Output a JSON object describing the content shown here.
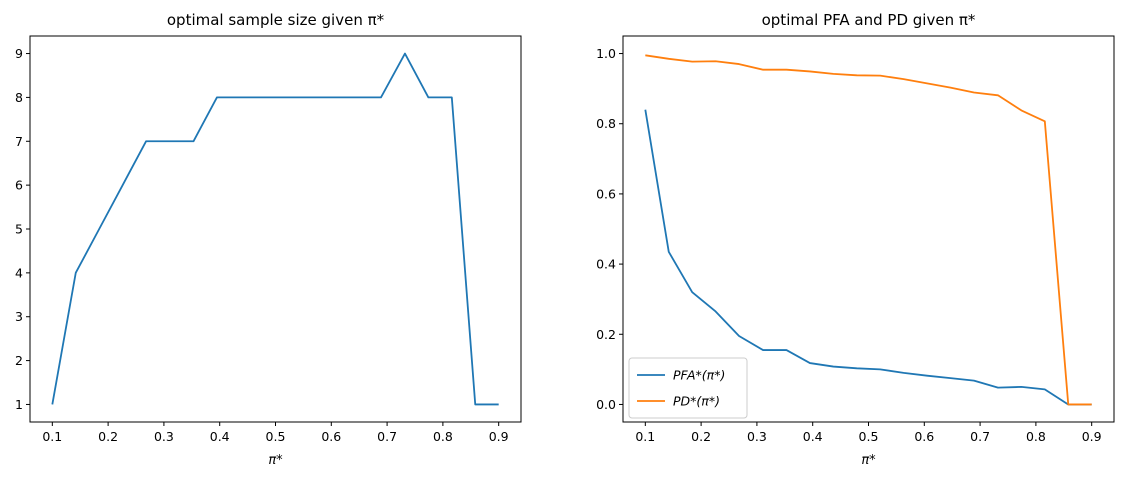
{
  "chart_data": [
    {
      "type": "line",
      "title": "optimal sample size given π*",
      "xlabel": "π*",
      "ylabel": "",
      "xlim": [
        0.06,
        0.94
      ],
      "ylim": [
        0.6,
        9.4
      ],
      "xticks": [
        0.1,
        0.2,
        0.3,
        0.4,
        0.5,
        0.6,
        0.7,
        0.8,
        0.9
      ],
      "xtick_labels": [
        "0.1",
        "0.2",
        "0.3",
        "0.4",
        "0.5",
        "0.6",
        "0.7",
        "0.8",
        "0.9"
      ],
      "yticks": [
        1,
        2,
        3,
        4,
        5,
        6,
        7,
        8,
        9
      ],
      "ytick_labels": [
        "1",
        "2",
        "3",
        "4",
        "5",
        "6",
        "7",
        "8",
        "9"
      ],
      "grid": false,
      "legend": null,
      "x": [
        0.1,
        0.142,
        0.184,
        0.226,
        0.268,
        0.311,
        0.353,
        0.395,
        0.437,
        0.479,
        0.521,
        0.563,
        0.605,
        0.647,
        0.689,
        0.732,
        0.774,
        0.816,
        0.858,
        0.9
      ],
      "series": [
        {
          "color": "#1f77b4",
          "values": [
            1,
            4,
            5,
            6,
            7,
            7,
            7,
            8,
            8,
            8,
            8,
            8,
            8,
            8,
            8,
            9,
            8,
            8,
            1,
            1
          ]
        }
      ]
    },
    {
      "type": "line",
      "title": "optimal PFA and PD given π*",
      "xlabel": "π*",
      "ylabel": "",
      "xlim": [
        0.06,
        0.94
      ],
      "ylim": [
        -0.05,
        1.05
      ],
      "xticks": [
        0.1,
        0.2,
        0.3,
        0.4,
        0.5,
        0.6,
        0.7,
        0.8,
        0.9
      ],
      "xtick_labels": [
        "0.1",
        "0.2",
        "0.3",
        "0.4",
        "0.5",
        "0.6",
        "0.7",
        "0.8",
        "0.9"
      ],
      "yticks": [
        0.0,
        0.2,
        0.4,
        0.6,
        0.8,
        1.0
      ],
      "ytick_labels": [
        "0.0",
        "0.2",
        "0.4",
        "0.6",
        "0.8",
        "1.0"
      ],
      "grid": false,
      "legend": "lower-left",
      "x": [
        0.1,
        0.142,
        0.184,
        0.226,
        0.268,
        0.311,
        0.353,
        0.395,
        0.437,
        0.479,
        0.521,
        0.563,
        0.605,
        0.647,
        0.689,
        0.732,
        0.774,
        0.816,
        0.858,
        0.9
      ],
      "series": [
        {
          "name": "PFA*(π*)",
          "color": "#1f77b4",
          "values": [
            0.84,
            0.435,
            0.32,
            0.265,
            0.195,
            0.155,
            0.155,
            0.118,
            0.108,
            0.103,
            0.1,
            0.09,
            0.082,
            0.075,
            0.068,
            0.048,
            0.05,
            0.043,
            0.0,
            0.0
          ]
        },
        {
          "name": "PD*(π*)",
          "color": "#ff7f0e",
          "values": [
            0.995,
            0.985,
            0.977,
            0.978,
            0.97,
            0.954,
            0.954,
            0.949,
            0.942,
            0.938,
            0.937,
            0.927,
            0.915,
            0.903,
            0.889,
            0.881,
            0.838,
            0.807,
            0.0,
            0.0
          ]
        }
      ]
    }
  ]
}
